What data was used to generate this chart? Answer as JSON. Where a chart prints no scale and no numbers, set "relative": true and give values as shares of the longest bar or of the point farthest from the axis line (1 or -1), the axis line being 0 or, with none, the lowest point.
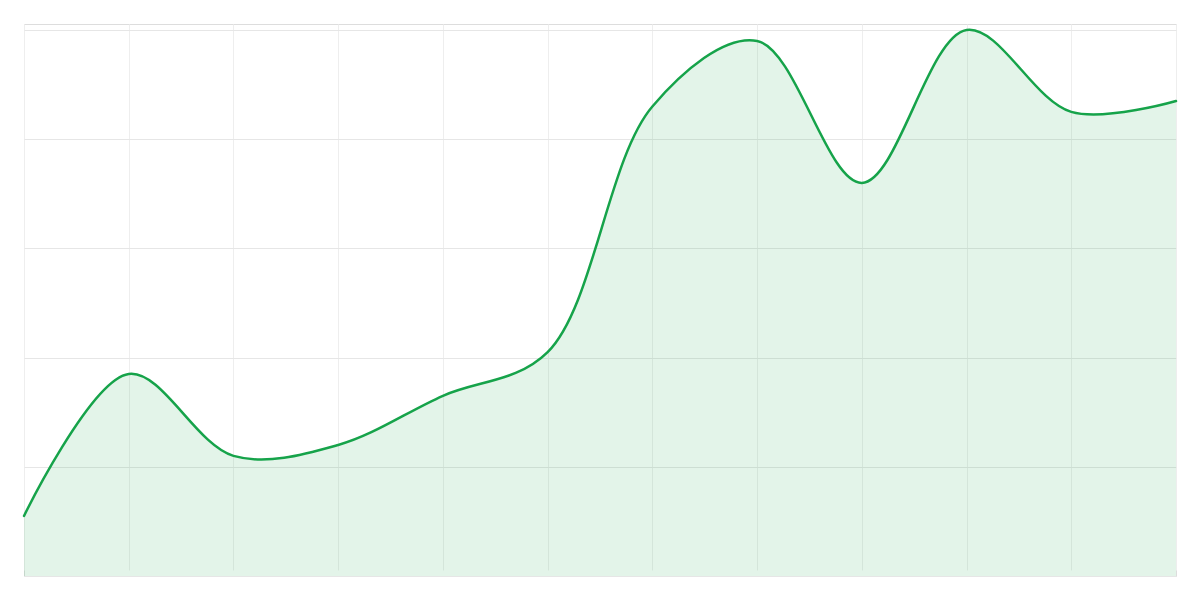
{
  "chart_data": {
    "type": "area",
    "relative": true,
    "categories": [
      null,
      null,
      null,
      null,
      null,
      null,
      null,
      null,
      null,
      null,
      null,
      null
    ],
    "values": [
      0.11,
      0.37,
      0.22,
      0.24,
      0.33,
      0.41,
      0.86,
      0.98,
      0.72,
      1,
      0.85,
      0.87
    ],
    "color": "#16a34a",
    "grid": true
  }
}
